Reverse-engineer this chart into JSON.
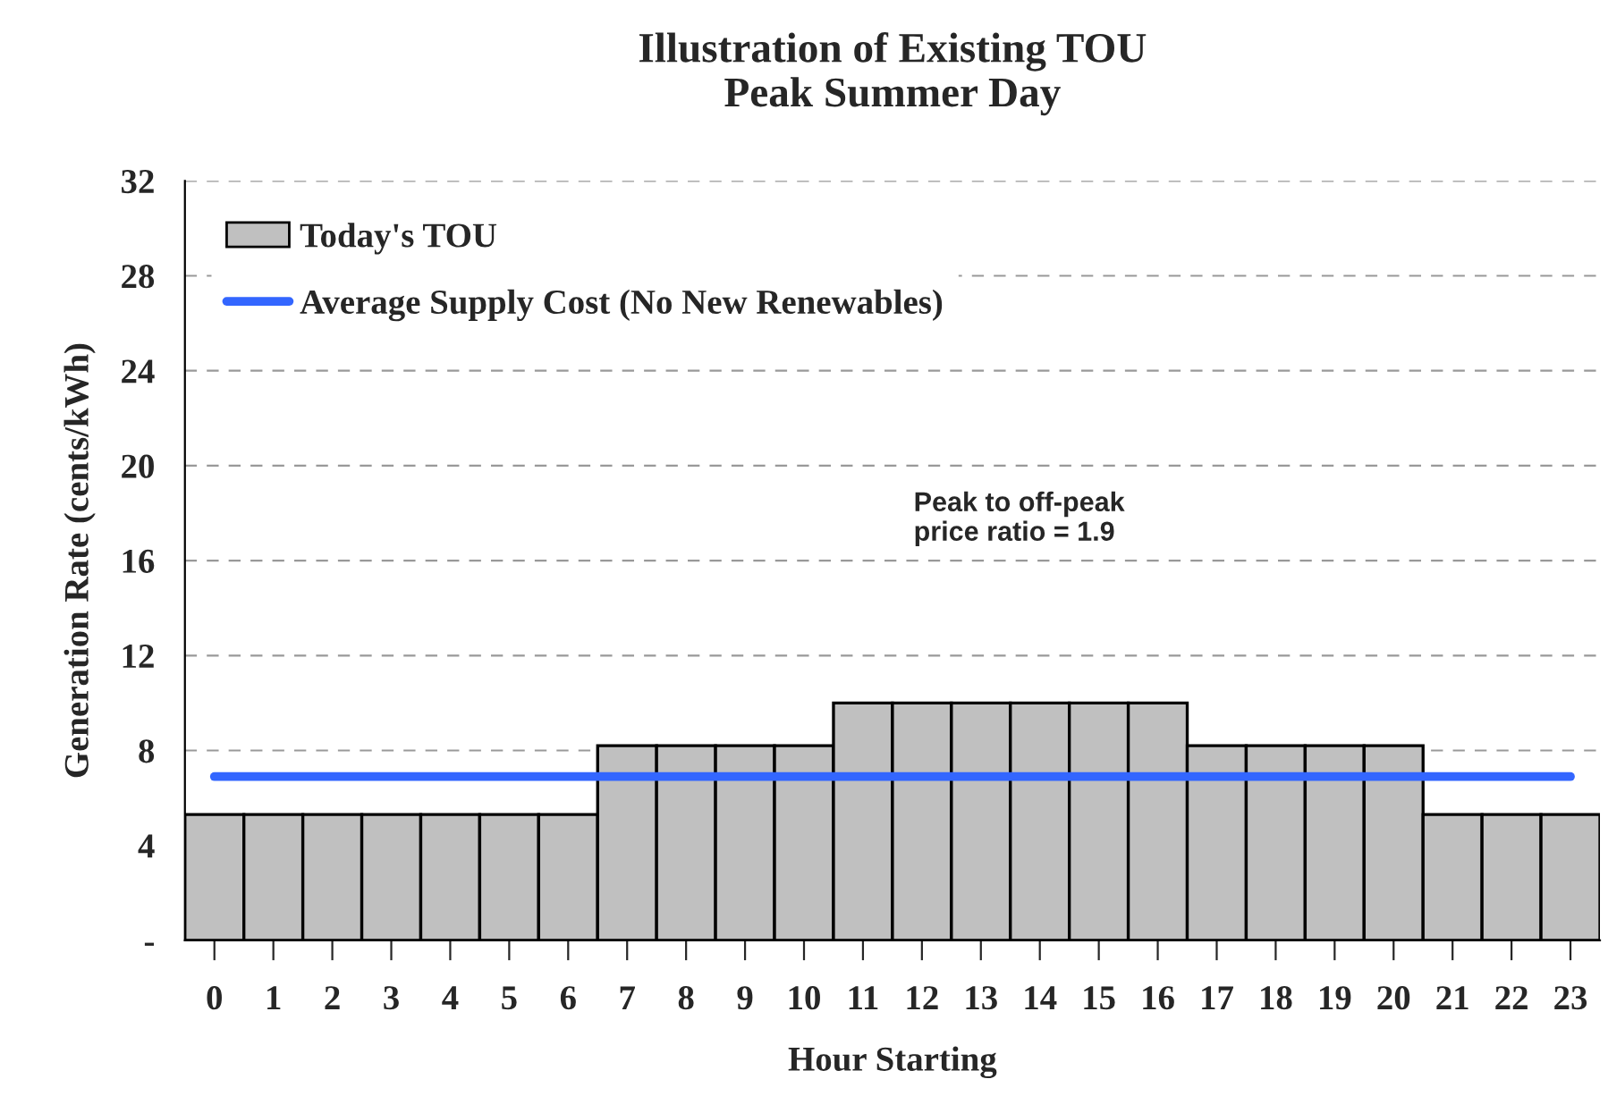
{
  "chart_data": {
    "type": "bar",
    "title": "Illustration of Existing TOU\nPeak Summer Day",
    "xlabel": "Hour Starting",
    "ylabel": "Generation Rate (cents/kWh)",
    "categories": [
      "0",
      "1",
      "2",
      "3",
      "4",
      "5",
      "6",
      "7",
      "8",
      "9",
      "10",
      "11",
      "12",
      "13",
      "14",
      "15",
      "16",
      "17",
      "18",
      "19",
      "20",
      "21",
      "22",
      "23"
    ],
    "series": [
      {
        "name": "Today's TOU",
        "color": "#c0c0c0",
        "values": [
          5.3,
          5.3,
          5.3,
          5.3,
          5.3,
          5.3,
          5.3,
          8.2,
          8.2,
          8.2,
          8.2,
          10,
          10,
          10,
          10,
          10,
          10,
          8.2,
          8.2,
          8.2,
          8.2,
          5.3,
          5.3,
          5.3
        ]
      },
      {
        "name": "Average Supply Cost (No New Renewables)",
        "type": "line",
        "color": "#3366ff",
        "values": [
          6.9,
          6.9,
          6.9,
          6.9,
          6.9,
          6.9,
          6.9,
          6.9,
          6.9,
          6.9,
          6.9,
          6.9,
          6.9,
          6.9,
          6.9,
          6.9,
          6.9,
          6.9,
          6.9,
          6.9,
          6.9,
          6.9,
          6.9,
          6.9
        ]
      }
    ],
    "ylim": [
      0,
      32
    ],
    "yticks": [
      {
        "value": 0,
        "label": "-"
      },
      4,
      8,
      12,
      16,
      20,
      24,
      28,
      32
    ],
    "grid": "y",
    "legend": "top left",
    "annotations": [
      "Peak to off-peak\nprice ratio = 1.9"
    ]
  }
}
